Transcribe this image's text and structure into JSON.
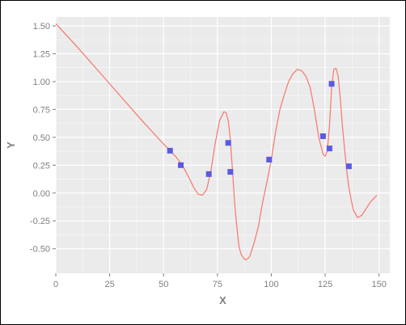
{
  "chart_data": {
    "type": "scatter",
    "xlabel": "X",
    "ylabel": "Y",
    "xlim": [
      0,
      155
    ],
    "ylim": [
      -0.72,
      1.58
    ],
    "x_ticks": [
      0,
      25,
      50,
      75,
      100,
      125,
      150
    ],
    "x_tick_labels": [
      "0",
      "25",
      "50",
      "75",
      "100",
      "125",
      "150"
    ],
    "y_ticks": [
      -0.5,
      -0.25,
      0.0,
      0.25,
      0.5,
      0.75,
      1.0,
      1.25,
      1.5
    ],
    "y_tick_labels": [
      "-0.50",
      "-0.25",
      "0.00",
      "0.25",
      "0.50",
      "0.75",
      "1.00",
      "1.25",
      "1.50"
    ],
    "grid": true,
    "panel_background": "#ebebeb",
    "grid_color": "#ffffff",
    "line_color": "#f8766d",
    "point_color": "#5a5ae0",
    "series": [
      {
        "kind": "line",
        "x": [
          0,
          10,
          20,
          30,
          40,
          50,
          53,
          56,
          59,
          62,
          64,
          66,
          68,
          70,
          72,
          74,
          76,
          78,
          79,
          80,
          81,
          82,
          83,
          84,
          85,
          86,
          87,
          88,
          89,
          90,
          92,
          94,
          96,
          98,
          100,
          102,
          104,
          106,
          108,
          110,
          112,
          114,
          116,
          118,
          120,
          122,
          124,
          125,
          126,
          127,
          128,
          129,
          130,
          131,
          132,
          133,
          134,
          135,
          136,
          137,
          138,
          140,
          142,
          144,
          146,
          149
        ],
        "y": [
          1.52,
          1.31,
          1.09,
          0.87,
          0.65,
          0.44,
          0.38,
          0.32,
          0.24,
          0.13,
          0.05,
          -0.01,
          -0.02,
          0.03,
          0.2,
          0.45,
          0.65,
          0.73,
          0.72,
          0.65,
          0.48,
          0.2,
          -0.1,
          -0.3,
          -0.48,
          -0.55,
          -0.58,
          -0.6,
          -0.59,
          -0.57,
          -0.45,
          -0.3,
          -0.08,
          0.1,
          0.3,
          0.55,
          0.75,
          0.88,
          1.0,
          1.07,
          1.11,
          1.1,
          1.05,
          0.95,
          0.75,
          0.5,
          0.35,
          0.33,
          0.38,
          0.6,
          0.95,
          1.11,
          1.12,
          1.05,
          0.85,
          0.6,
          0.4,
          0.2,
          0.05,
          -0.05,
          -0.15,
          -0.22,
          -0.2,
          -0.14,
          -0.08,
          -0.02
        ]
      },
      {
        "kind": "points",
        "x": [
          53,
          58,
          71,
          80,
          81,
          99,
          124,
          127,
          128,
          136
        ],
        "y": [
          0.38,
          0.25,
          0.17,
          0.45,
          0.19,
          0.3,
          0.51,
          0.4,
          0.98,
          0.24
        ]
      }
    ]
  }
}
